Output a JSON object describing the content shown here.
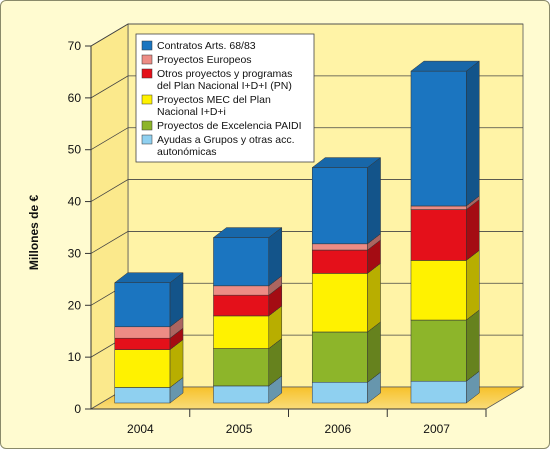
{
  "chart_data": {
    "type": "bar",
    "stacked": true,
    "three_d": true,
    "categories": [
      "2004",
      "2005",
      "2006",
      "2007"
    ],
    "ylabel": "Millones de €",
    "ylim": [
      0,
      70
    ],
    "yticks": [
      "0",
      "10",
      "20",
      "30",
      "40",
      "50",
      "60",
      "70"
    ],
    "grid": true,
    "legend_position": "top-left",
    "series": [
      {
        "name": "Ayudas a Grupos y otras acc. autonómicas",
        "color": "#8fd0f0",
        "values": [
          3,
          3.3,
          4,
          4.2
        ]
      },
      {
        "name": "Proyectos de Excelencia PAIDI",
        "color": "#8db52a",
        "values": [
          0,
          7.2,
          9.7,
          11.8
        ]
      },
      {
        "name": "Proyectos MEC del Plan Nacional I+D+i",
        "color": "#fff200",
        "values": [
          7.3,
          6.3,
          11.3,
          11.5
        ]
      },
      {
        "name": "Otros proyectos y programas del Plan Nacional I+D+I (PN)",
        "color": "#e4101a",
        "values": [
          2.2,
          4,
          4.5,
          9.8
        ]
      },
      {
        "name": "Proyectos Europeos",
        "color": "#ed8c85",
        "values": [
          2.2,
          1.8,
          1.2,
          0.7
        ]
      },
      {
        "name": "Contratos Arts. 68/83",
        "color": "#1b75c0",
        "values": [
          8.5,
          9.3,
          14.7,
          26
        ]
      }
    ],
    "legend": [
      {
        "label_lines": [
          "Contratos Arts. 68/83"
        ],
        "color": "#1b75c0"
      },
      {
        "label_lines": [
          "Proyectos Europeos"
        ],
        "color": "#ed8c85"
      },
      {
        "label_lines": [
          "Otros proyectos y programas",
          "del Plan Nacional I+D+I (PN)"
        ],
        "color": "#e4101a"
      },
      {
        "label_lines": [
          "Proyectos MEC del Plan",
          "Nacional I+D+i"
        ],
        "color": "#fff200"
      },
      {
        "label_lines": [
          "Proyectos de Excelencia PAIDI"
        ],
        "color": "#8db52a"
      },
      {
        "label_lines": [
          "Ayudas a Grupos y otras acc.",
          "autonómicas"
        ],
        "color": "#8fd0f0"
      }
    ]
  }
}
